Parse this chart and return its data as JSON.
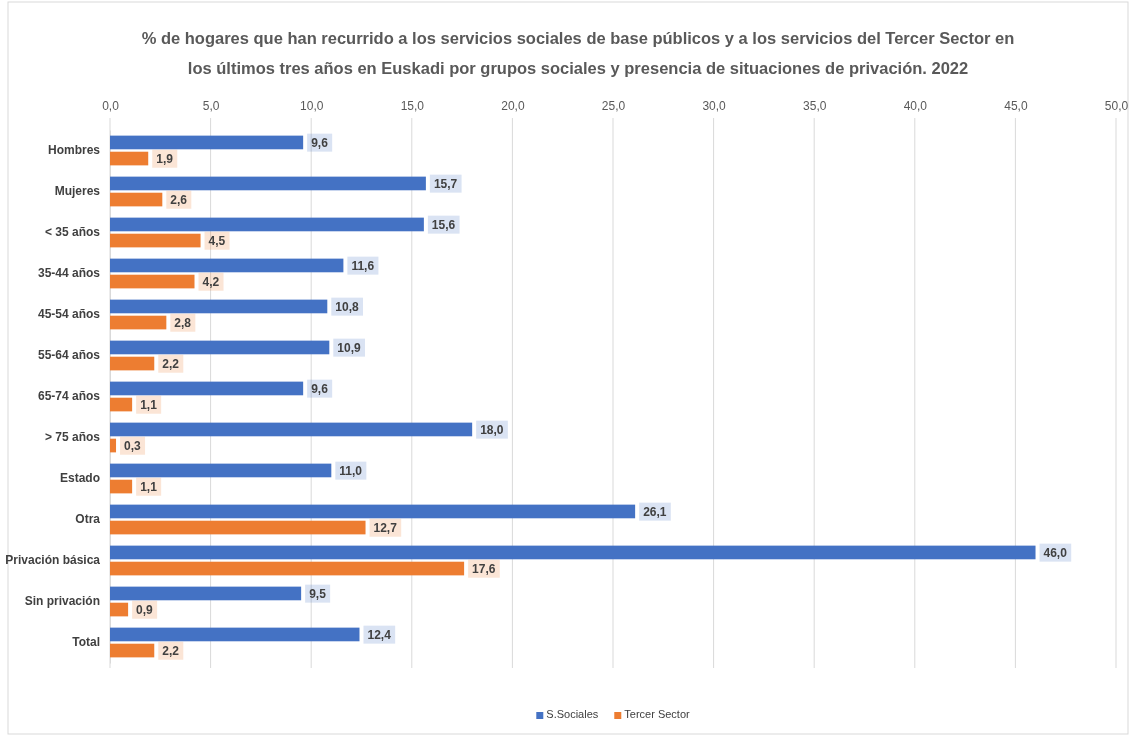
{
  "chart_data": {
    "type": "bar",
    "orientation": "horizontal",
    "title": "% de hogares que han recurrido a los servicios sociales de base públicos y a los servicios del Tercer Sector en los últimos tres años en Euskadi por grupos sociales y presencia de situaciones de privación. 2022",
    "categories": [
      "Hombres",
      "Mujeres",
      "< 35 años",
      "35-44 años",
      "45-54 años",
      "55-64 años",
      "65-74 años",
      "> 75 años",
      "Estado",
      "Otra",
      "Privación básica",
      "Sin privación",
      "Total"
    ],
    "series": [
      {
        "name": "S.Sociales",
        "color": "#4472c4",
        "values": [
          9.6,
          15.7,
          15.6,
          11.6,
          10.8,
          10.9,
          9.6,
          18.0,
          11.0,
          26.1,
          46.0,
          9.5,
          12.4
        ],
        "value_labels": [
          "9,6",
          "15,7",
          "15,6",
          "11,6",
          "10,8",
          "10,9",
          "9,6",
          "18,0",
          "11,0",
          "26,1",
          "46,0",
          "9,5",
          "12,4"
        ]
      },
      {
        "name": "Tercer Sector",
        "color": "#ed7d31",
        "values": [
          1.9,
          2.6,
          4.5,
          4.2,
          2.8,
          2.2,
          1.1,
          0.3,
          1.1,
          12.7,
          17.6,
          0.9,
          2.2
        ],
        "value_labels": [
          "1,9",
          "2,6",
          "4,5",
          "4,2",
          "2,8",
          "2,2",
          "1,1",
          "0,3",
          "1,1",
          "12,7",
          "17,6",
          "0,9",
          "2,2"
        ]
      }
    ],
    "xlim": [
      0,
      50
    ],
    "xticks": [
      {
        "value": 0,
        "label": "0,0"
      },
      {
        "value": 5,
        "label": "5,0"
      },
      {
        "value": 10,
        "label": "10,0"
      },
      {
        "value": 15,
        "label": "15,0"
      },
      {
        "value": 20,
        "label": "20,0"
      },
      {
        "value": 25,
        "label": "25,0"
      },
      {
        "value": 30,
        "label": "30,0"
      },
      {
        "value": 35,
        "label": "35,0"
      },
      {
        "value": 40,
        "label": "40,0"
      },
      {
        "value": 45,
        "label": "45,0"
      },
      {
        "value": 50,
        "label": "50,0"
      }
    ],
    "grid": "x",
    "legend": "bottom"
  }
}
